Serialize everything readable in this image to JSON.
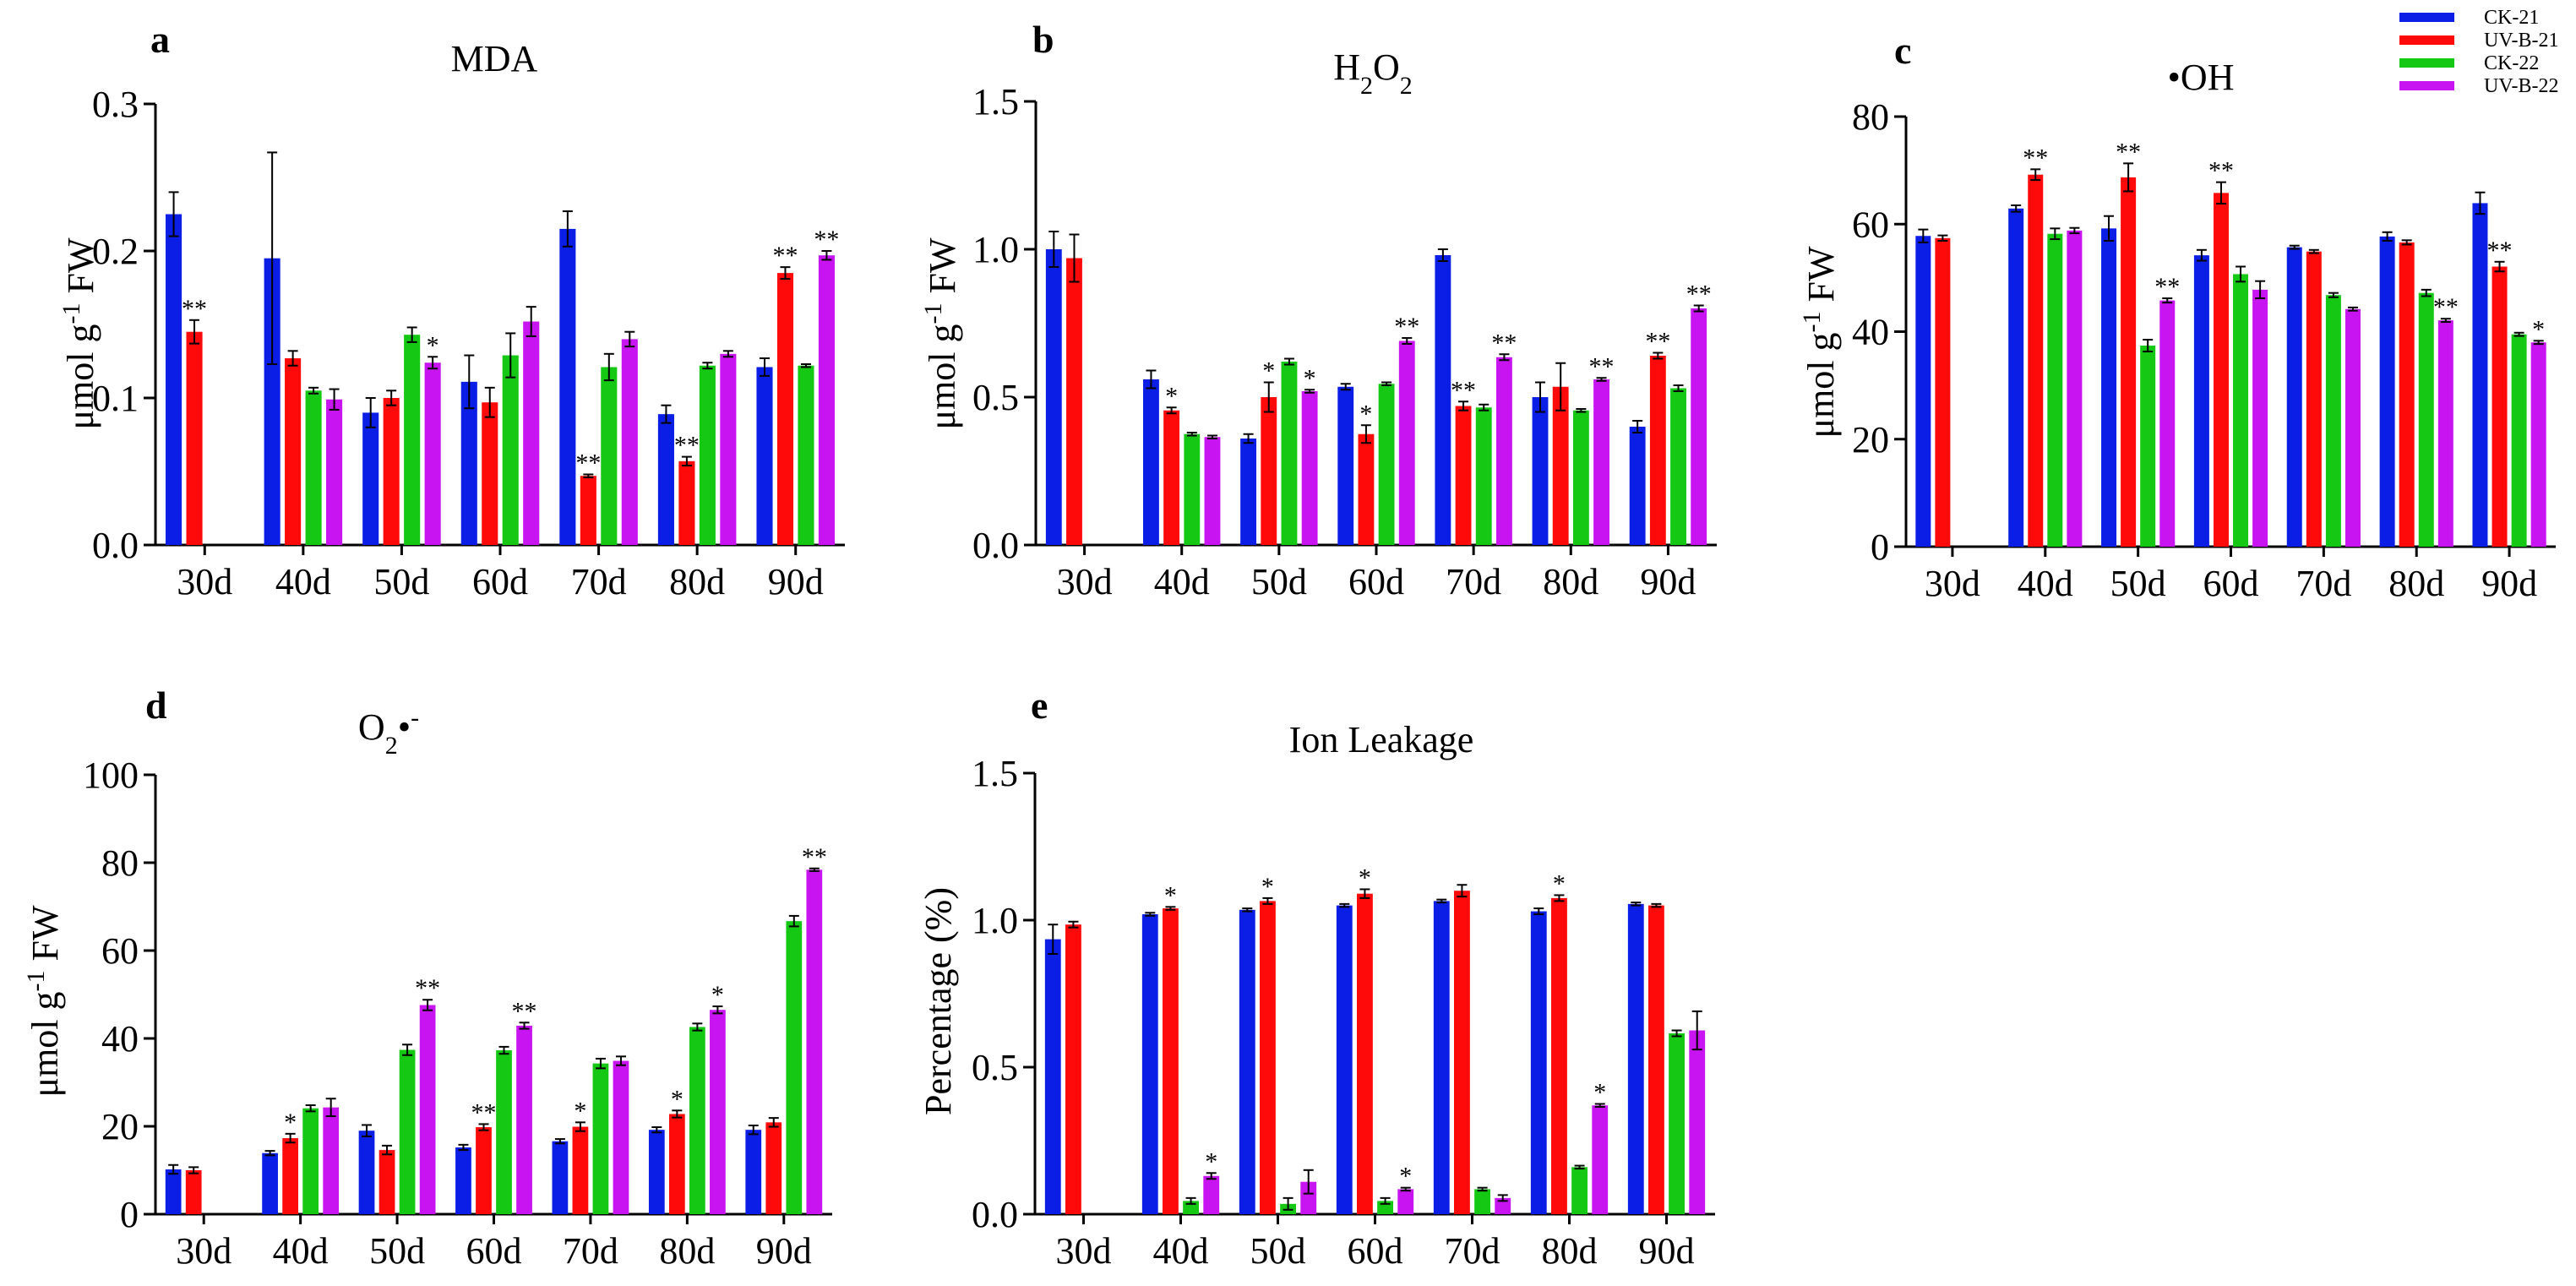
{
  "legend": [
    {
      "label": "CK-21",
      "color": "#0a1ee6"
    },
    {
      "label": "UV-B-21",
      "color": "#ff0a0a"
    },
    {
      "label": "CK-22",
      "color": "#14c814"
    },
    {
      "label": "UV-B-22",
      "color": "#c814f0"
    }
  ],
  "chart_data": [
    {
      "type": "bar",
      "panel": "a",
      "title": "MDA",
      "ylabel": "μmol g-1 FW",
      "ylim": [
        0,
        0.3
      ],
      "yticks": [
        "0.0",
        "0.1",
        "0.2",
        "0.3"
      ],
      "categories": [
        "30d",
        "40d",
        "50d",
        "60d",
        "70d",
        "80d",
        "90d"
      ],
      "series": [
        {
          "name": "CK-21",
          "values": [
            0.225,
            0.195,
            0.09,
            0.111,
            0.215,
            0.089,
            0.121
          ],
          "errors": [
            0.015,
            0.072,
            0.01,
            0.018,
            0.012,
            0.006,
            0.006
          ],
          "sig": [
            "",
            "",
            "",
            "",
            "",
            "",
            ""
          ]
        },
        {
          "name": "UV-B-21",
          "values": [
            0.145,
            0.127,
            0.1,
            0.097,
            0.047,
            0.057,
            0.185
          ],
          "errors": [
            0.008,
            0.005,
            0.005,
            0.01,
            0.001,
            0.003,
            0.004
          ],
          "sig": [
            "**",
            "",
            "",
            "",
            "**",
            "**",
            "**"
          ]
        },
        {
          "name": "CK-22",
          "values": [
            null,
            0.105,
            0.143,
            0.129,
            0.121,
            0.122,
            0.122
          ],
          "errors": [
            0,
            0.002,
            0.005,
            0.015,
            0.009,
            0.002,
            0.001
          ],
          "sig": [
            "",
            "",
            "",
            "",
            "",
            "",
            ""
          ]
        },
        {
          "name": "UV-B-22",
          "values": [
            null,
            0.099,
            0.124,
            0.152,
            0.14,
            0.13,
            0.197
          ],
          "errors": [
            0,
            0.007,
            0.004,
            0.01,
            0.005,
            0.002,
            0.003
          ],
          "sig": [
            "",
            "",
            "*",
            "",
            "",
            "",
            "**"
          ]
        }
      ]
    },
    {
      "type": "bar",
      "panel": "b",
      "title": "H2O2",
      "ylabel": "μmol g-1 FW",
      "ylim": [
        0,
        1.5
      ],
      "yticks": [
        "0.0",
        "0.5",
        "1.0",
        "1.5"
      ],
      "categories": [
        "30d",
        "40d",
        "50d",
        "60d",
        "70d",
        "80d",
        "90d"
      ],
      "series": [
        {
          "name": "CK-21",
          "values": [
            1.0,
            0.56,
            0.36,
            0.535,
            0.98,
            0.5,
            0.4
          ],
          "errors": [
            0.06,
            0.03,
            0.015,
            0.01,
            0.02,
            0.05,
            0.02
          ],
          "sig": [
            "",
            "",
            "",
            "",
            "",
            "",
            ""
          ]
        },
        {
          "name": "UV-B-21",
          "values": [
            0.97,
            0.455,
            0.5,
            0.375,
            0.47,
            0.535,
            0.64
          ],
          "errors": [
            0.08,
            0.01,
            0.05,
            0.03,
            0.015,
            0.08,
            0.01
          ],
          "sig": [
            "",
            "*",
            "*",
            "*",
            "**",
            "",
            "**"
          ]
        },
        {
          "name": "CK-22",
          "values": [
            null,
            0.375,
            0.62,
            0.545,
            0.465,
            0.455,
            0.53
          ],
          "errors": [
            0,
            0.005,
            0.01,
            0.005,
            0.01,
            0.005,
            0.01
          ],
          "sig": [
            "",
            "",
            "",
            "",
            "",
            "",
            ""
          ]
        },
        {
          "name": "UV-B-22",
          "values": [
            null,
            0.365,
            0.52,
            0.69,
            0.635,
            0.56,
            0.8
          ],
          "errors": [
            0,
            0.005,
            0.005,
            0.01,
            0.01,
            0.005,
            0.01
          ],
          "sig": [
            "",
            "",
            "*",
            "**",
            "**",
            "**",
            "**"
          ]
        }
      ]
    },
    {
      "type": "bar",
      "panel": "c",
      "title": "•OH",
      "ylabel": "μmol g-1 FW",
      "ylim": [
        0,
        80
      ],
      "yticks": [
        "0",
        "20",
        "40",
        "60",
        "80"
      ],
      "categories": [
        "30d",
        "40d",
        "50d",
        "60d",
        "70d",
        "80d",
        "90d"
      ],
      "series": [
        {
          "name": "CK-21",
          "values": [
            57.8,
            62.9,
            59.2,
            54.2,
            55.7,
            57.7,
            63.9
          ],
          "errors": [
            1.2,
            0.6,
            2.3,
            1.0,
            0.3,
            0.8,
            2.0
          ],
          "sig": [
            "",
            "",
            "",
            "",
            "",
            "",
            ""
          ]
        },
        {
          "name": "UV-B-21",
          "values": [
            57.4,
            69.2,
            68.7,
            65.8,
            54.9,
            56.6,
            52.1
          ],
          "errors": [
            0.5,
            1.0,
            2.6,
            2.0,
            0.3,
            0.4,
            0.9
          ],
          "sig": [
            "",
            "**",
            "**",
            "**",
            "",
            "",
            "**"
          ]
        },
        {
          "name": "CK-22",
          "values": [
            null,
            58.2,
            37.4,
            50.7,
            46.8,
            47.2,
            39.5
          ],
          "errors": [
            0,
            1.0,
            1.1,
            1.4,
            0.4,
            0.6,
            0.3
          ],
          "sig": [
            "",
            "",
            "",
            "",
            "",
            "",
            ""
          ]
        },
        {
          "name": "UV-B-22",
          "values": [
            null,
            58.8,
            45.8,
            47.8,
            44.2,
            42.1,
            38.0
          ],
          "errors": [
            0,
            0.5,
            0.4,
            1.6,
            0.3,
            0.3,
            0.3
          ],
          "sig": [
            "",
            "",
            "**",
            "",
            "",
            "**",
            "*"
          ]
        }
      ]
    },
    {
      "type": "bar",
      "panel": "d",
      "title": "O2•-",
      "ylabel": "μmol g-1 FW",
      "ylim": [
        0,
        100
      ],
      "yticks": [
        "0",
        "20",
        "40",
        "60",
        "80",
        "100"
      ],
      "categories": [
        "30d",
        "40d",
        "50d",
        "60d",
        "70d",
        "80d",
        "90d"
      ],
      "series": [
        {
          "name": "CK-21",
          "values": [
            10.2,
            13.9,
            19.0,
            15.2,
            16.6,
            19.2,
            19.2
          ],
          "errors": [
            1.0,
            0.5,
            1.3,
            0.6,
            0.5,
            0.6,
            1.0
          ],
          "sig": [
            "",
            "",
            "",
            "",
            "",
            "",
            ""
          ]
        },
        {
          "name": "UV-B-21",
          "values": [
            10.0,
            17.3,
            14.6,
            19.8,
            19.9,
            22.8,
            20.9
          ],
          "errors": [
            0.7,
            1.0,
            1.0,
            0.7,
            1.0,
            0.8,
            1.0
          ],
          "sig": [
            "",
            "*",
            "",
            "**",
            "*",
            "*",
            ""
          ]
        },
        {
          "name": "CK-22",
          "values": [
            null,
            24.1,
            37.4,
            37.3,
            34.3,
            42.6,
            66.7
          ],
          "errors": [
            0,
            0.7,
            1.2,
            0.8,
            1.1,
            0.8,
            1.2
          ],
          "sig": [
            "",
            "",
            "",
            "",
            "",
            "",
            ""
          ]
        },
        {
          "name": "UV-B-22",
          "values": [
            null,
            24.3,
            47.6,
            42.9,
            34.9,
            46.5,
            78.4
          ],
          "errors": [
            0,
            2.0,
            1.2,
            0.7,
            1.0,
            0.8,
            0.3
          ],
          "sig": [
            "",
            "",
            "**",
            "**",
            "",
            "*",
            "**"
          ]
        }
      ]
    },
    {
      "type": "bar",
      "panel": "e",
      "title": "Ion Leakage",
      "ylabel": "Percentage (%)",
      "ylim": [
        0,
        1.5
      ],
      "yticks": [
        "0.0",
        "0.5",
        "1.0",
        "1.5"
      ],
      "categories": [
        "30d",
        "40d",
        "50d",
        "60d",
        "70d",
        "80d",
        "90d"
      ],
      "series": [
        {
          "name": "CK-21",
          "values": [
            0.935,
            1.02,
            1.035,
            1.05,
            1.065,
            1.03,
            1.055
          ],
          "errors": [
            0.05,
            0.005,
            0.005,
            0.005,
            0.005,
            0.01,
            0.005
          ],
          "sig": [
            "",
            "",
            "",
            "",
            "",
            "",
            ""
          ]
        },
        {
          "name": "UV-B-21",
          "values": [
            0.985,
            1.04,
            1.065,
            1.09,
            1.1,
            1.075,
            1.05
          ],
          "errors": [
            0.01,
            0.005,
            0.01,
            0.015,
            0.02,
            0.01,
            0.005
          ],
          "sig": [
            "",
            "*",
            "*",
            "*",
            "",
            "*",
            ""
          ]
        },
        {
          "name": "CK-22",
          "values": [
            null,
            0.045,
            0.035,
            0.045,
            0.085,
            0.16,
            0.615
          ],
          "errors": [
            0,
            0.01,
            0.02,
            0.01,
            0.005,
            0.005,
            0.01
          ],
          "sig": [
            "",
            "",
            "",
            "",
            "",
            "",
            ""
          ]
        },
        {
          "name": "UV-B-22",
          "values": [
            null,
            0.13,
            0.11,
            0.085,
            0.055,
            0.37,
            0.625
          ],
          "errors": [
            0,
            0.01,
            0.04,
            0.005,
            0.01,
            0.005,
            0.065
          ],
          "sig": [
            "",
            "*",
            "",
            "*",
            "",
            "*",
            ""
          ]
        }
      ]
    }
  ]
}
